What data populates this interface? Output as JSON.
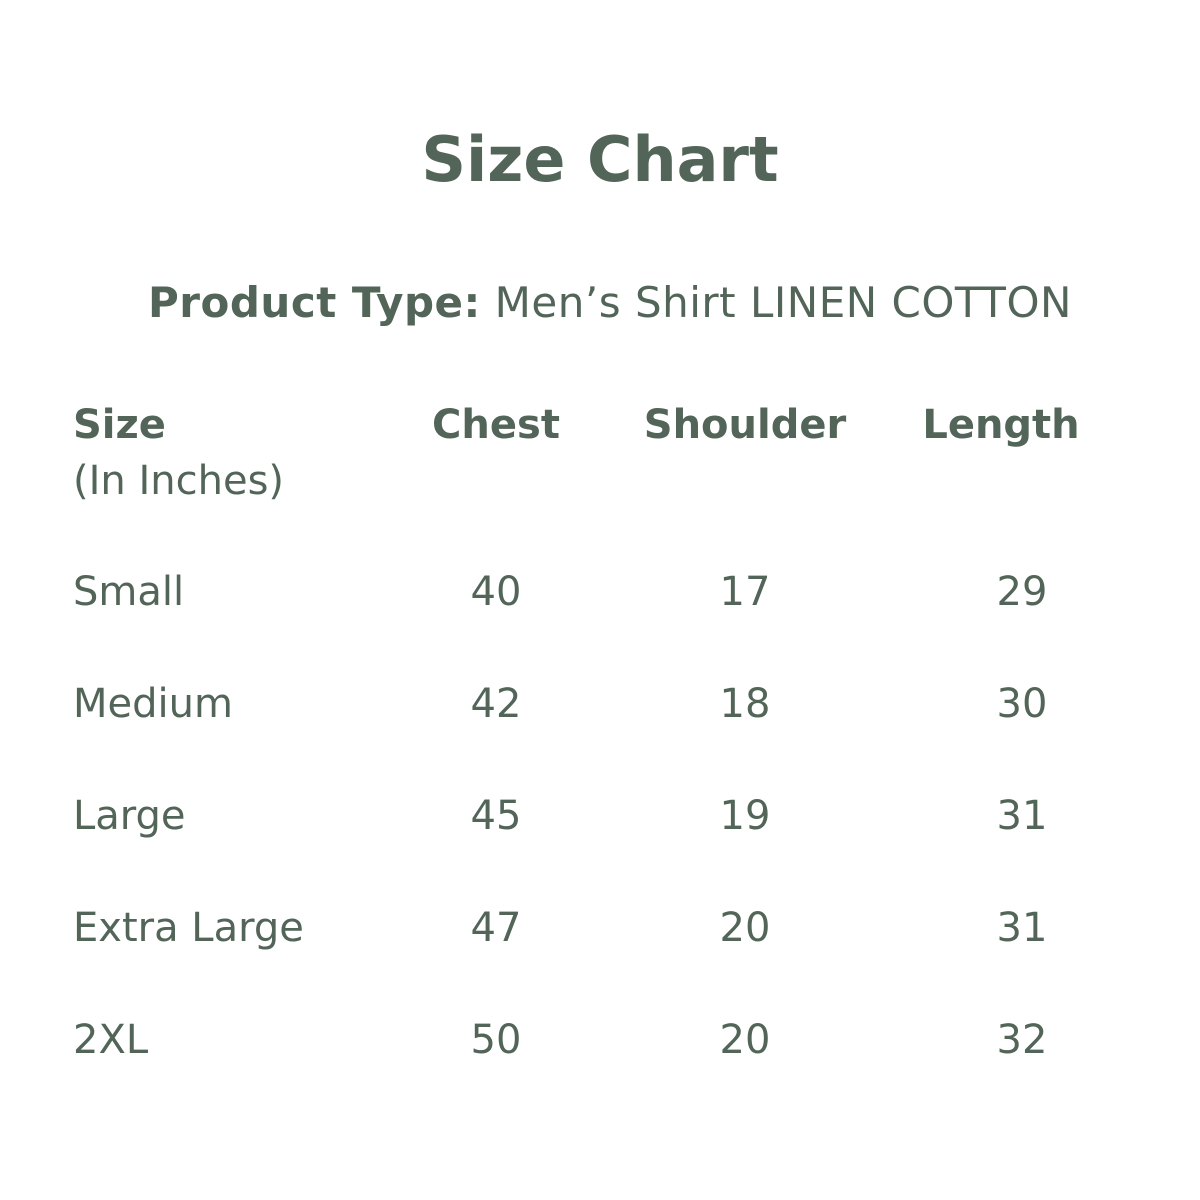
{
  "title": "Size Chart",
  "product_type": {
    "label": "Product Type:",
    "value": "Men’s Shirt LINEN COTTON"
  },
  "table": {
    "headers": [
      "Size",
      "Chest",
      "Shoulder",
      "Length"
    ],
    "size_subheader": "(In Inches)",
    "rows": [
      [
        "Small",
        "40",
        "17",
        "29"
      ],
      [
        "Medium",
        "42",
        "18",
        "30"
      ],
      [
        "Large",
        "45",
        "19",
        "31"
      ],
      [
        "Extra Large",
        "47",
        "20",
        "31"
      ],
      [
        "2XL",
        "50",
        "20",
        "32"
      ]
    ]
  },
  "colors": {
    "text": "#526558",
    "background": "#ffffff"
  }
}
